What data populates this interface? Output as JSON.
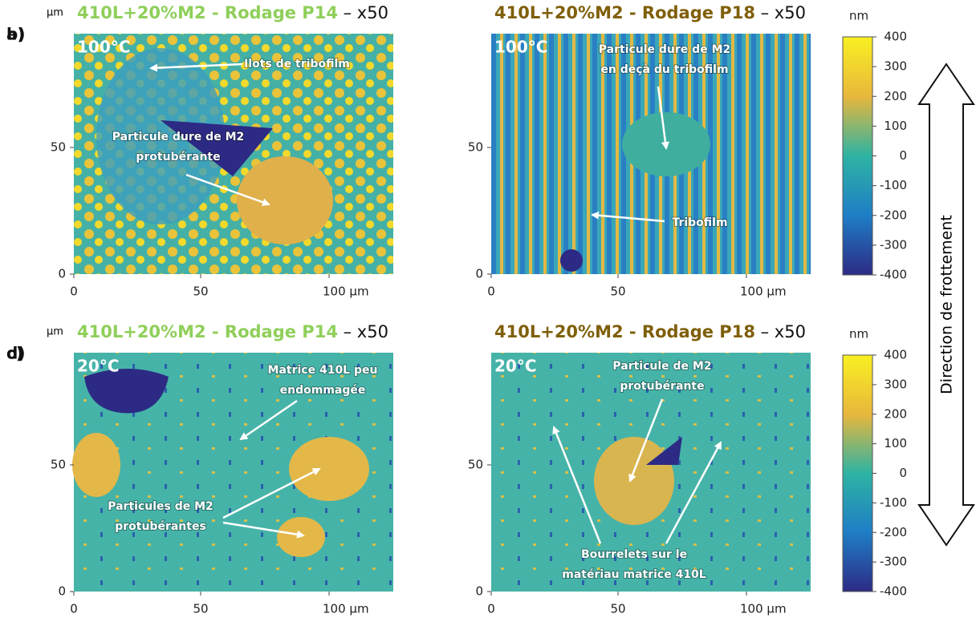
{
  "panels": [
    {
      "letter": "a)",
      "title": "410L+20%M2 - Rodage P14",
      "magnification": " – x50",
      "unit": "µm",
      "temperature": "100°C",
      "annotations": [
        {
          "lines": [
            "Ilots de tribofilm"
          ]
        },
        {
          "lines": [
            "Particule dure de M2",
            "protubérante"
          ]
        }
      ],
      "xticks": [
        "0",
        "50",
        "100 µm"
      ],
      "yticks": [
        "0",
        "50"
      ]
    },
    {
      "letter": "b)",
      "title": "410L+20%M2 - Rodage P18",
      "magnification": " – x50",
      "unit": "µm",
      "temperature": "100°C",
      "annotations": [
        {
          "lines": [
            "Particule dure de M2",
            "en deçà du tribofilm"
          ]
        },
        {
          "lines": [
            "Tribofilm"
          ]
        }
      ],
      "xticks": [
        "0",
        "50",
        "100 µm"
      ],
      "yticks": [
        "0",
        "50"
      ]
    },
    {
      "letter": "c)",
      "title": "410L+20%M2 - Rodage P14",
      "magnification": " – x50",
      "unit": "µm",
      "temperature": "20°C",
      "annotations": [
        {
          "lines": [
            "Matrice 410L peu",
            "endommagée"
          ]
        },
        {
          "lines": [
            "Particules de M2",
            "protubérantes"
          ]
        }
      ],
      "xticks": [
        "0",
        "50",
        "100 µm"
      ],
      "yticks": [
        "0",
        "50"
      ]
    },
    {
      "letter": "d)",
      "title": "410L+20%M2 - Rodage P18",
      "magnification": " – x50",
      "unit": "µm",
      "temperature": "20°C",
      "annotations": [
        {
          "lines": [
            "Particule de M2",
            "protubérante"
          ]
        },
        {
          "lines": [
            "Bourrelets sur le",
            "matériau matrice 410L"
          ]
        }
      ],
      "xticks": [
        "0",
        "50",
        "100 µm"
      ],
      "yticks": [
        "0",
        "50"
      ]
    }
  ],
  "colorbars": [
    {
      "unit": "nm",
      "ticks": [
        "400",
        "300",
        "200",
        "100",
        "0",
        "-100",
        "-200",
        "-300",
        "-400"
      ]
    },
    {
      "unit": "nm",
      "ticks": [
        "400",
        "300",
        "200",
        "100",
        "0",
        "-100",
        "-200",
        "-300",
        "-400"
      ]
    }
  ],
  "arrow_label": "Direction de frottement"
}
